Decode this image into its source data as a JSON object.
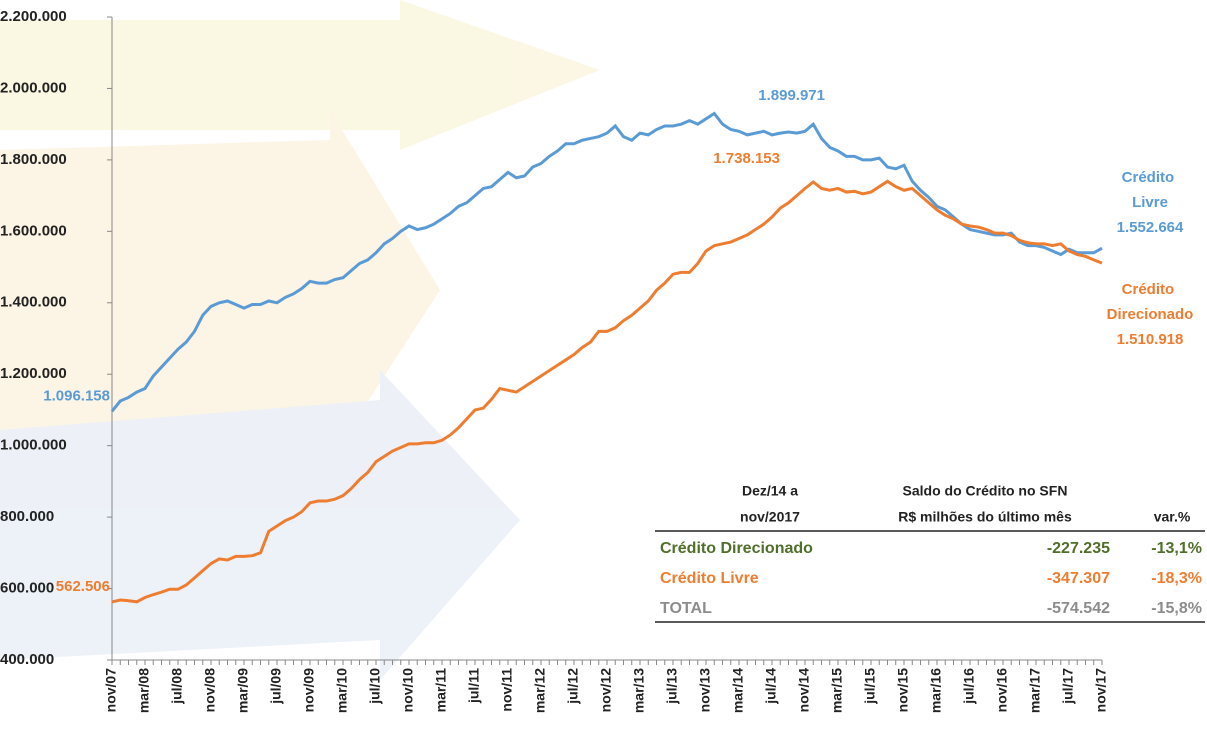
{
  "chart_data": {
    "type": "line",
    "categories": [
      "nov/07",
      null,
      null,
      null,
      "mar/08",
      null,
      null,
      null,
      "jul/08",
      null,
      null,
      null,
      "nov/08",
      null,
      null,
      null,
      "mar/09",
      null,
      null,
      null,
      "jul/09",
      null,
      null,
      null,
      "nov/09",
      null,
      null,
      null,
      "mar/10",
      null,
      null,
      null,
      "jul/10",
      null,
      null,
      null,
      "nov/10",
      null,
      null,
      null,
      "mar/11",
      null,
      null,
      null,
      "jul/11",
      null,
      null,
      null,
      "nov/11",
      null,
      null,
      null,
      "mar/12",
      null,
      null,
      null,
      "jul/12",
      null,
      null,
      null,
      "nov/12",
      null,
      null,
      null,
      "mar/13",
      null,
      null,
      null,
      "jul/13",
      null,
      null,
      null,
      "nov/13",
      null,
      null,
      null,
      "mar/14",
      null,
      null,
      null,
      "jul/14",
      null,
      null,
      null,
      "nov/14",
      null,
      null,
      null,
      "mar/15",
      null,
      null,
      null,
      "jul/15",
      null,
      null,
      null,
      "nov/15",
      null,
      null,
      null,
      "mar/16",
      null,
      null,
      null,
      "jul/16",
      null,
      null,
      null,
      "nov/16",
      null,
      null,
      null,
      "mar/17",
      null,
      null,
      null,
      "jul/17",
      null,
      null,
      null,
      "nov/17"
    ],
    "series": [
      {
        "name": "Crédito Livre",
        "color": "#5b9bd5",
        "values": [
          1096158,
          1125000,
          1135000,
          1150000,
          1160000,
          1195000,
          1220000,
          1245000,
          1270000,
          1290000,
          1320000,
          1365000,
          1390000,
          1400000,
          1405000,
          1395000,
          1385000,
          1395000,
          1395000,
          1405000,
          1400000,
          1415000,
          1425000,
          1440000,
          1460000,
          1455000,
          1455000,
          1465000,
          1470000,
          1490000,
          1510000,
          1520000,
          1540000,
          1565000,
          1580000,
          1600000,
          1615000,
          1605000,
          1610000,
          1620000,
          1635000,
          1650000,
          1670000,
          1680000,
          1700000,
          1720000,
          1725000,
          1745000,
          1765000,
          1750000,
          1755000,
          1780000,
          1790000,
          1810000,
          1825000,
          1845000,
          1845000,
          1855000,
          1860000,
          1865000,
          1875000,
          1895000,
          1865000,
          1855000,
          1875000,
          1870000,
          1885000,
          1895000,
          1895000,
          1900000,
          1910000,
          1900000,
          1915000,
          1930000,
          1900000,
          1885000,
          1880000,
          1870000,
          1875000,
          1880000,
          1870000,
          1875000,
          1878000,
          1875000,
          1880000,
          1899971,
          1860000,
          1835000,
          1825000,
          1810000,
          1810000,
          1800000,
          1800000,
          1805000,
          1780000,
          1775000,
          1785000,
          1740000,
          1715000,
          1695000,
          1670000,
          1660000,
          1640000,
          1620000,
          1605000,
          1600000,
          1595000,
          1590000,
          1590000,
          1595000,
          1570000,
          1560000,
          1560000,
          1555000,
          1545000,
          1535000,
          1550000,
          1540000,
          1540000,
          1540000,
          1552664
        ],
        "value_labels": [
          "1.096.158",
          null,
          null,
          null,
          null,
          null,
          null,
          null,
          null,
          null,
          null,
          null,
          null,
          null,
          null,
          null,
          null,
          null,
          null,
          null,
          null,
          null,
          null,
          null,
          null,
          null,
          null,
          null,
          null,
          null,
          null,
          null,
          null,
          null,
          null,
          null,
          null,
          null,
          null,
          null,
          null,
          null,
          null,
          null,
          null,
          null,
          null,
          null,
          null,
          null,
          null,
          null,
          null,
          null,
          null,
          null,
          null,
          null,
          null,
          null,
          null,
          null,
          null,
          null,
          null,
          null,
          null,
          null,
          null,
          null,
          null,
          null,
          null,
          null,
          null,
          null,
          null,
          null,
          null,
          null,
          null,
          null,
          null,
          null,
          null,
          "1.899.971",
          null,
          null,
          null,
          null,
          null,
          null,
          null,
          null,
          null,
          null,
          null,
          null,
          null,
          null,
          null,
          null,
          null,
          null,
          null,
          null,
          null,
          null,
          null,
          null,
          null,
          null,
          null,
          null,
          null,
          null,
          null,
          null,
          null,
          null,
          "1.552.664"
        ]
      },
      {
        "name": "Crédito Direcionado",
        "color": "#ed7d31",
        "values": [
          562506,
          568000,
          566000,
          563000,
          575000,
          583000,
          590000,
          598000,
          598000,
          610000,
          630000,
          650000,
          670000,
          683000,
          680000,
          690000,
          690000,
          692000,
          700000,
          760000,
          775000,
          790000,
          800000,
          815000,
          840000,
          845000,
          845000,
          850000,
          860000,
          880000,
          905000,
          925000,
          955000,
          970000,
          985000,
          995000,
          1005000,
          1005000,
          1008000,
          1008000,
          1015000,
          1030000,
          1050000,
          1075000,
          1100000,
          1105000,
          1130000,
          1160000,
          1155000,
          1150000,
          1165000,
          1180000,
          1195000,
          1210000,
          1225000,
          1240000,
          1255000,
          1275000,
          1290000,
          1320000,
          1320000,
          1330000,
          1350000,
          1365000,
          1385000,
          1405000,
          1435000,
          1455000,
          1480000,
          1485000,
          1485000,
          1510000,
          1545000,
          1560000,
          1565000,
          1570000,
          1580000,
          1590000,
          1605000,
          1620000,
          1640000,
          1665000,
          1680000,
          1700000,
          1720000,
          1738153,
          1720000,
          1715000,
          1720000,
          1710000,
          1712000,
          1705000,
          1710000,
          1725000,
          1740000,
          1725000,
          1715000,
          1720000,
          1700000,
          1680000,
          1660000,
          1645000,
          1635000,
          1620000,
          1615000,
          1612000,
          1605000,
          1595000,
          1595000,
          1588000,
          1575000,
          1568000,
          1565000,
          1565000,
          1560000,
          1565000,
          1545000,
          1535000,
          1530000,
          1520000,
          1510918
        ],
        "value_labels": [
          "562.506",
          null,
          null,
          null,
          null,
          null,
          null,
          null,
          null,
          null,
          null,
          null,
          null,
          null,
          null,
          null,
          null,
          null,
          null,
          null,
          null,
          null,
          null,
          null,
          null,
          null,
          null,
          null,
          null,
          null,
          null,
          null,
          null,
          null,
          null,
          null,
          null,
          null,
          null,
          null,
          null,
          null,
          null,
          null,
          null,
          null,
          null,
          null,
          null,
          null,
          null,
          null,
          null,
          null,
          null,
          null,
          null,
          null,
          null,
          null,
          null,
          null,
          null,
          null,
          null,
          null,
          null,
          null,
          null,
          null,
          null,
          null,
          null,
          null,
          null,
          null,
          null,
          null,
          null,
          null,
          null,
          null,
          null,
          null,
          null,
          "1.738.153",
          null,
          null,
          null,
          null,
          null,
          null,
          null,
          null,
          null,
          null,
          null,
          null,
          null,
          null,
          null,
          null,
          null,
          null,
          null,
          null,
          null,
          null,
          null,
          null,
          null,
          null,
          null,
          null,
          null,
          null,
          null,
          null,
          null,
          null,
          "1.510.918"
        ]
      }
    ],
    "ylim": [
      400000,
      2200000
    ],
    "yticks": [
      {
        "value": 400000,
        "label": "400.000"
      },
      {
        "value": 600000,
        "label": "600.000"
      },
      {
        "value": 800000,
        "label": "800.000"
      },
      {
        "value": 1000000,
        "label": "1.000.000"
      },
      {
        "value": 1200000,
        "label": "1.200.000"
      },
      {
        "value": 1400000,
        "label": "1.400.000"
      },
      {
        "value": 1600000,
        "label": "1.600.000"
      },
      {
        "value": 1800000,
        "label": "1.800.000"
      },
      {
        "value": 2000000,
        "label": "2.000.000"
      },
      {
        "value": 2200000,
        "label": "2.200.000"
      }
    ],
    "grid": false
  },
  "table": {
    "header": [
      [
        "Dez/14 a",
        "nov/2017"
      ],
      [
        "Saldo do Crédito no SFN",
        "R$ milhões do último mês"
      ],
      [
        "var.%"
      ]
    ],
    "rows": [
      {
        "cells": [
          "Crédito Direcionado",
          "-227.235",
          "-13,1%"
        ],
        "color": "#4f6f2a"
      },
      {
        "cells": [
          "Crédito Livre",
          "-347.307",
          "-18,3%"
        ],
        "color": "#ed7d31"
      },
      {
        "cells": [
          "TOTAL",
          "-574.542",
          "-15,8%"
        ],
        "color": "#8c8c8c"
      }
    ]
  }
}
